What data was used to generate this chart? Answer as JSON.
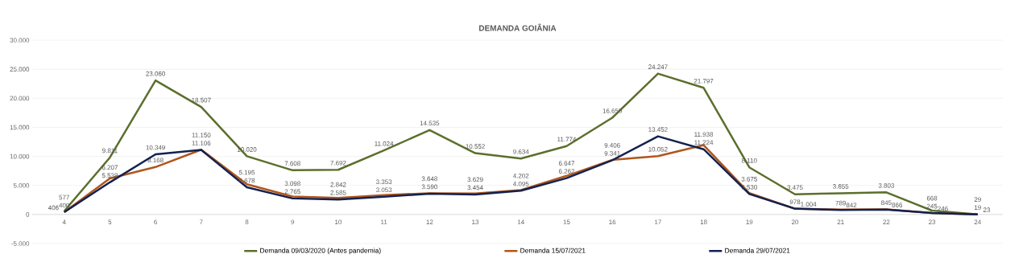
{
  "chart_data": {
    "type": "line",
    "title": "DEMANDA GOIÂNIA",
    "categories": [
      "4",
      "5",
      "6",
      "7",
      "8",
      "9",
      "10",
      "11",
      "12",
      "13",
      "14",
      "15",
      "16",
      "17",
      "18",
      "19",
      "20",
      "21",
      "22",
      "23",
      "24"
    ],
    "series": [
      {
        "name": "Demanda 09/03/2020 (Antes pandemia)",
        "color": "#5b6f2c",
        "values": [
          577,
          9811,
          23060,
          18507,
          10020,
          7608,
          7692,
          11024,
          14535,
          10552,
          9634,
          11774,
          16650,
          24247,
          21797,
          8110,
          3475,
          3655,
          3803,
          668,
          29
        ],
        "value_labels": [
          "577",
          "9.811",
          "23.060",
          "18.507",
          "10.020",
          "7.608",
          "7.692",
          "11.024",
          "14.535",
          "10.552",
          "9.634",
          "11.774",
          "16.650",
          "24.247",
          "21.797",
          "8.110",
          "3.475",
          "3.655",
          "3.803",
          "668",
          "29"
        ]
      },
      {
        "name": "Demanda 15/07/2021",
        "color": "#b0561c",
        "values": [
          400,
          6207,
          8168,
          11150,
          5195,
          3098,
          2842,
          3353,
          3648,
          3629,
          4202,
          6647,
          9406,
          10052,
          11938,
          3675,
          978,
          842,
          866,
          245,
          19
        ],
        "value_labels": [
          "400",
          "6.207",
          "8.168",
          "11.150",
          "5.195",
          "3.098",
          "2.842",
          "3.353",
          "3.648",
          "3.629",
          "4.202",
          "6.647",
          "9.406",
          "10.052",
          "11.938",
          "3.675",
          "978",
          "842",
          "866",
          "245",
          "19"
        ]
      },
      {
        "name": "Demanda 29/07/2021",
        "color": "#13214f",
        "values": [
          406,
          5538,
          10349,
          11106,
          4678,
          2765,
          2585,
          3053,
          3590,
          3454,
          4095,
          6262,
          9341,
          13452,
          11224,
          3530,
          1004,
          789,
          845,
          246,
          23
        ],
        "value_labels": [
          "406",
          "5.538",
          "10.349",
          "11.106",
          "4.678",
          "2.765",
          "2.585",
          "3.053",
          "3.590",
          "3.454",
          "4.095",
          "6.262",
          "9.341",
          "13.452",
          "11.224",
          "3.530",
          "1.004",
          "789",
          "845",
          "246",
          "23"
        ]
      }
    ],
    "ylim": [
      -5000,
      30000
    ],
    "yticks": [
      {
        "value": -5000,
        "label": "-5.000"
      },
      0,
      {
        "value": 5000,
        "label": "5.000"
      },
      {
        "value": 10000,
        "label": "10.000"
      },
      {
        "value": 15000,
        "label": "15.000"
      },
      {
        "value": 20000,
        "label": "20.000"
      },
      {
        "value": 25000,
        "label": "25.000"
      },
      {
        "value": 30000,
        "label": "30.000"
      }
    ],
    "grid": "y",
    "legend": "bottom",
    "marker": "none",
    "line_style": "solid"
  }
}
